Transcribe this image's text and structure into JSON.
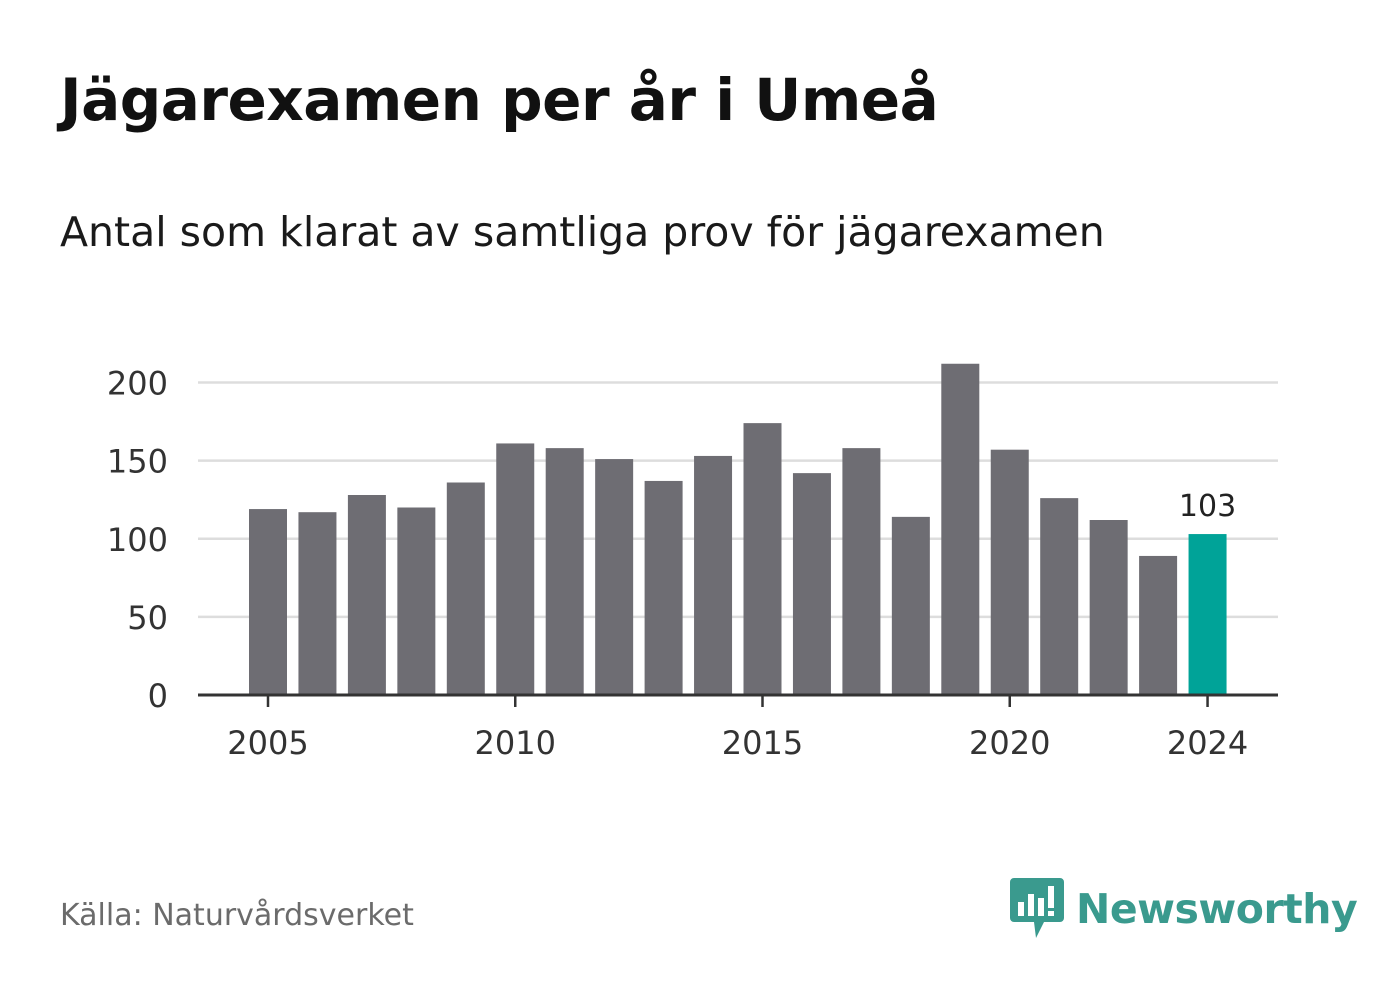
{
  "header": {
    "title": "Jägarexamen per år i Umeå",
    "subtitle": "Antal som klarat av samtliga prov för jägarexamen"
  },
  "footer": {
    "source": "Källa: Naturvårdsverket",
    "brand": "Newsworthy"
  },
  "colors": {
    "bar": "#6e6d73",
    "highlight": "#00a398",
    "grid": "#dddddd",
    "axis": "#333333",
    "brand": "#3a9a8e"
  },
  "chart_data": {
    "type": "bar",
    "x": [
      2005,
      2006,
      2007,
      2008,
      2009,
      2010,
      2011,
      2012,
      2013,
      2014,
      2015,
      2016,
      2017,
      2018,
      2019,
      2020,
      2021,
      2022,
      2023,
      2024
    ],
    "values": [
      119,
      117,
      128,
      120,
      136,
      161,
      158,
      151,
      137,
      153,
      174,
      142,
      158,
      114,
      212,
      157,
      126,
      112,
      89,
      103
    ],
    "x_ticks": [
      "2005",
      "2010",
      "2015",
      "2020",
      "2024"
    ],
    "y_ticks": [
      0,
      50,
      100,
      150,
      200
    ],
    "ylim": [
      0,
      212
    ],
    "highlight": {
      "x": 2024,
      "label": "103"
    },
    "grid": true,
    "legend": "none"
  }
}
